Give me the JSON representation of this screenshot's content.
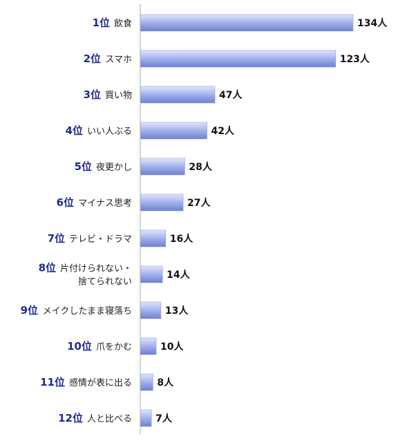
{
  "chart_data": {
    "type": "bar",
    "orientation": "horizontal",
    "title": "",
    "xlabel": "",
    "ylabel": "",
    "unit": "人",
    "grid": false,
    "xlim": [
      0,
      134
    ],
    "colors": {
      "bar_light": "#dfe6fb",
      "bar_mid": "#a8b6ee",
      "bar_dark": "#6e7fd0",
      "rank_text": "#1f2a8c"
    },
    "items": [
      {
        "rank": "1位",
        "lines": [
          "飲食"
        ],
        "value": 134,
        "value_label": "134人"
      },
      {
        "rank": "2位",
        "lines": [
          "スマホ"
        ],
        "value": 123,
        "value_label": "123人"
      },
      {
        "rank": "3位",
        "lines": [
          "買い物"
        ],
        "value": 47,
        "value_label": "47人"
      },
      {
        "rank": "4位",
        "lines": [
          "いい人ぶる"
        ],
        "value": 42,
        "value_label": "42人"
      },
      {
        "rank": "5位",
        "lines": [
          "夜更かし"
        ],
        "value": 28,
        "value_label": "28人"
      },
      {
        "rank": "6位",
        "lines": [
          "マイナス思考"
        ],
        "value": 27,
        "value_label": "27人"
      },
      {
        "rank": "7位",
        "lines": [
          "テレビ・ドラマ"
        ],
        "value": 16,
        "value_label": "16人"
      },
      {
        "rank": "8位",
        "lines": [
          "片付けられない・",
          "捨てられない"
        ],
        "value": 14,
        "value_label": "14人"
      },
      {
        "rank": "9位",
        "lines": [
          "メイクしたまま寝落ち"
        ],
        "value": 13,
        "value_label": "13人"
      },
      {
        "rank": "10位",
        "lines": [
          "爪をかむ"
        ],
        "value": 10,
        "value_label": "10人"
      },
      {
        "rank": "11位",
        "lines": [
          "感情が表に出る"
        ],
        "value": 8,
        "value_label": "8人"
      },
      {
        "rank": "12位",
        "lines": [
          "人と比べる"
        ],
        "value": 7,
        "value_label": "7人"
      }
    ]
  }
}
